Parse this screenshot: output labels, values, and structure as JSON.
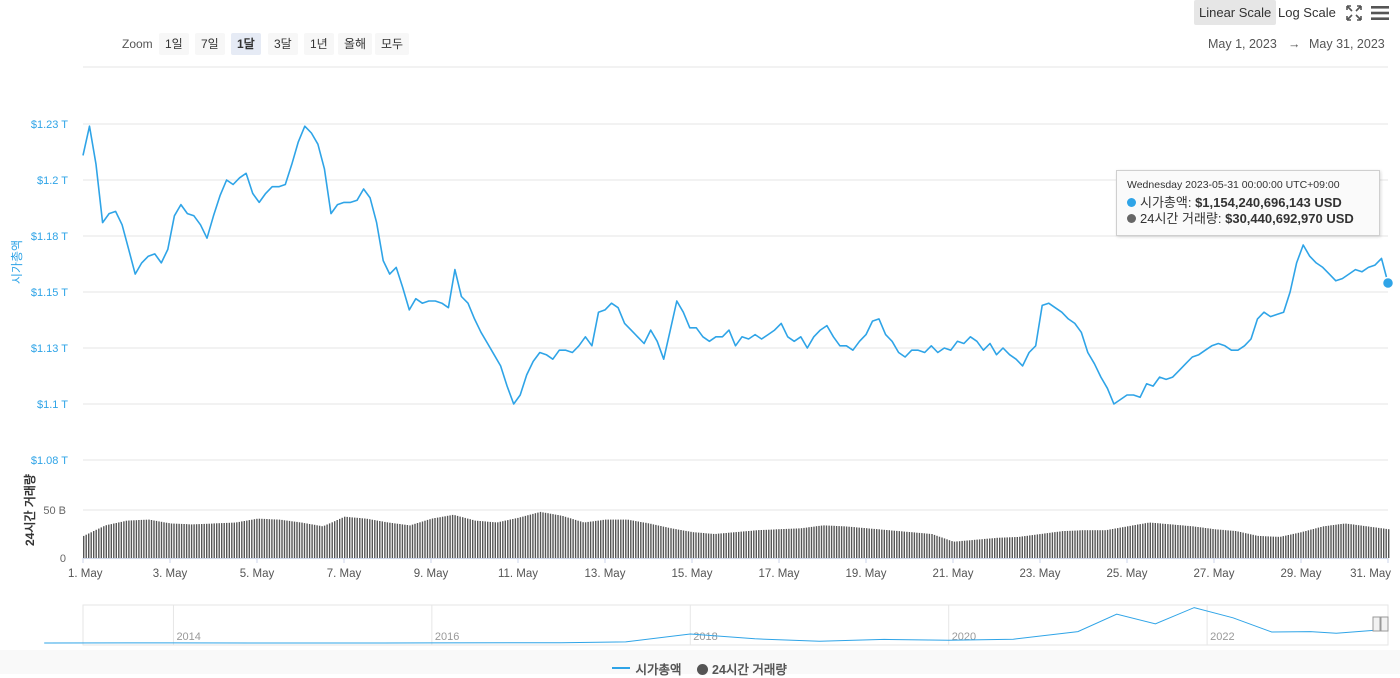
{
  "toolbar": {
    "linear_label": "Linear Scale",
    "log_label": "Log Scale",
    "fullscreen_icon": "fullscreen-icon",
    "menu_icon": "hamburger-menu-icon"
  },
  "zoom": {
    "label": "Zoom",
    "buttons": [
      "1일",
      "7일",
      "1달",
      "3달",
      "1년",
      "올해",
      "모두"
    ],
    "active_index": 2
  },
  "range": {
    "from": "May 1, 2023",
    "arrow": "→",
    "to": "May 31, 2023"
  },
  "tooltip": {
    "date": "Wednesday 2023-05-31 00:00:00 UTC+09:00",
    "mcap_label": "시가총액:",
    "mcap_value": "$1,154,240,696,143 USD",
    "vol_label": "24시간 거래량:",
    "vol_value": "$30,440,692,970 USD"
  },
  "legend": {
    "mcap": "시가총액",
    "volume": "24시간 거래량"
  },
  "colors": {
    "mcap": "#2fa4e7",
    "volume": "#666666",
    "grid": "#e6e6e6"
  },
  "chart_data": {
    "type": "line",
    "x_ticks": [
      "1. May",
      "3. May",
      "5. May",
      "7. May",
      "9. May",
      "11. May",
      "13. May",
      "15. May",
      "17. May",
      "19. May",
      "21. May",
      "23. May",
      "25. May",
      "27. May",
      "29. May",
      "31. May"
    ],
    "y_ticks": [
      "$1.08 T",
      "$1.1 T",
      "$1.13 T",
      "$1.15 T",
      "$1.18 T",
      "$1.2 T",
      "$1.23 T"
    ],
    "ylim": [
      1.075,
      1.225
    ],
    "ylabel": "시가총액",
    "vol_ylabel": "24시간 거래량",
    "vol_ticks": [
      "0",
      "50 B"
    ],
    "vol_ylim": [
      0,
      50
    ],
    "series": [
      {
        "name": "시가총액",
        "unit": "trillion USD",
        "points": [
          [
            1.0,
            1.211
          ],
          [
            1.15,
            1.224
          ],
          [
            1.3,
            1.207
          ],
          [
            1.45,
            1.181
          ],
          [
            1.6,
            1.185
          ],
          [
            1.75,
            1.186
          ],
          [
            1.9,
            1.18
          ],
          [
            2.05,
            1.169
          ],
          [
            2.2,
            1.158
          ],
          [
            2.35,
            1.163
          ],
          [
            2.5,
            1.166
          ],
          [
            2.65,
            1.167
          ],
          [
            2.8,
            1.163
          ],
          [
            2.95,
            1.169
          ],
          [
            3.1,
            1.184
          ],
          [
            3.25,
            1.189
          ],
          [
            3.4,
            1.185
          ],
          [
            3.55,
            1.184
          ],
          [
            3.7,
            1.18
          ],
          [
            3.85,
            1.174
          ],
          [
            4.0,
            1.184
          ],
          [
            4.15,
            1.193
          ],
          [
            4.3,
            1.2
          ],
          [
            4.45,
            1.198
          ],
          [
            4.6,
            1.201
          ],
          [
            4.75,
            1.203
          ],
          [
            4.9,
            1.194
          ],
          [
            5.05,
            1.19
          ],
          [
            5.2,
            1.194
          ],
          [
            5.35,
            1.197
          ],
          [
            5.5,
            1.197
          ],
          [
            5.65,
            1.198
          ],
          [
            5.8,
            1.207
          ],
          [
            5.95,
            1.217
          ],
          [
            6.1,
            1.224
          ],
          [
            6.25,
            1.221
          ],
          [
            6.4,
            1.216
          ],
          [
            6.55,
            1.205
          ],
          [
            6.7,
            1.185
          ],
          [
            6.85,
            1.189
          ],
          [
            7.0,
            1.19
          ],
          [
            7.15,
            1.19
          ],
          [
            7.3,
            1.191
          ],
          [
            7.45,
            1.196
          ],
          [
            7.6,
            1.192
          ],
          [
            7.75,
            1.181
          ],
          [
            7.9,
            1.164
          ],
          [
            8.05,
            1.158
          ],
          [
            8.2,
            1.161
          ],
          [
            8.35,
            1.152
          ],
          [
            8.5,
            1.142
          ],
          [
            8.65,
            1.147
          ],
          [
            8.8,
            1.145
          ],
          [
            8.95,
            1.146
          ],
          [
            9.1,
            1.146
          ],
          [
            9.25,
            1.145
          ],
          [
            9.4,
            1.143
          ],
          [
            9.55,
            1.16
          ],
          [
            9.7,
            1.148
          ],
          [
            9.85,
            1.145
          ],
          [
            10.0,
            1.138
          ],
          [
            10.15,
            1.132
          ],
          [
            10.3,
            1.127
          ],
          [
            10.45,
            1.122
          ],
          [
            10.6,
            1.117
          ],
          [
            10.75,
            1.108
          ],
          [
            10.9,
            1.1
          ],
          [
            11.05,
            1.104
          ],
          [
            11.2,
            1.113
          ],
          [
            11.35,
            1.119
          ],
          [
            11.5,
            1.123
          ],
          [
            11.65,
            1.122
          ],
          [
            11.8,
            1.12
          ],
          [
            11.95,
            1.124
          ],
          [
            12.1,
            1.124
          ],
          [
            12.25,
            1.123
          ],
          [
            12.4,
            1.126
          ],
          [
            12.55,
            1.13
          ],
          [
            12.7,
            1.126
          ],
          [
            12.85,
            1.141
          ],
          [
            13.0,
            1.142
          ],
          [
            13.15,
            1.145
          ],
          [
            13.3,
            1.143
          ],
          [
            13.45,
            1.136
          ],
          [
            13.6,
            1.133
          ],
          [
            13.75,
            1.13
          ],
          [
            13.9,
            1.127
          ],
          [
            14.05,
            1.133
          ],
          [
            14.2,
            1.128
          ],
          [
            14.35,
            1.12
          ],
          [
            14.5,
            1.133
          ],
          [
            14.65,
            1.146
          ],
          [
            14.8,
            1.141
          ],
          [
            14.95,
            1.134
          ],
          [
            15.1,
            1.134
          ],
          [
            15.25,
            1.13
          ],
          [
            15.4,
            1.128
          ],
          [
            15.55,
            1.13
          ],
          [
            15.7,
            1.13
          ],
          [
            15.85,
            1.133
          ],
          [
            16.0,
            1.126
          ],
          [
            16.15,
            1.13
          ],
          [
            16.3,
            1.129
          ],
          [
            16.45,
            1.131
          ],
          [
            16.6,
            1.129
          ],
          [
            16.75,
            1.131
          ],
          [
            16.9,
            1.133
          ],
          [
            17.05,
            1.136
          ],
          [
            17.2,
            1.13
          ],
          [
            17.35,
            1.128
          ],
          [
            17.5,
            1.13
          ],
          [
            17.65,
            1.125
          ],
          [
            17.8,
            1.13
          ],
          [
            17.95,
            1.133
          ],
          [
            18.1,
            1.135
          ],
          [
            18.25,
            1.13
          ],
          [
            18.4,
            1.126
          ],
          [
            18.55,
            1.126
          ],
          [
            18.7,
            1.124
          ],
          [
            18.85,
            1.128
          ],
          [
            19.0,
            1.131
          ],
          [
            19.15,
            1.137
          ],
          [
            19.3,
            1.138
          ],
          [
            19.45,
            1.131
          ],
          [
            19.6,
            1.128
          ],
          [
            19.75,
            1.123
          ],
          [
            19.9,
            1.121
          ],
          [
            20.05,
            1.124
          ],
          [
            20.2,
            1.124
          ],
          [
            20.35,
            1.123
          ],
          [
            20.5,
            1.126
          ],
          [
            20.65,
            1.123
          ],
          [
            20.8,
            1.125
          ],
          [
            20.95,
            1.124
          ],
          [
            21.1,
            1.128
          ],
          [
            21.25,
            1.127
          ],
          [
            21.4,
            1.13
          ],
          [
            21.55,
            1.128
          ],
          [
            21.7,
            1.124
          ],
          [
            21.85,
            1.127
          ],
          [
            22.0,
            1.122
          ],
          [
            22.15,
            1.125
          ],
          [
            22.3,
            1.122
          ],
          [
            22.45,
            1.12
          ],
          [
            22.6,
            1.117
          ],
          [
            22.75,
            1.123
          ],
          [
            22.9,
            1.126
          ],
          [
            23.05,
            1.144
          ],
          [
            23.2,
            1.145
          ],
          [
            23.35,
            1.143
          ],
          [
            23.5,
            1.141
          ],
          [
            23.65,
            1.138
          ],
          [
            23.8,
            1.136
          ],
          [
            23.95,
            1.132
          ],
          [
            24.1,
            1.123
          ],
          [
            24.25,
            1.118
          ],
          [
            24.4,
            1.112
          ],
          [
            24.55,
            1.107
          ],
          [
            24.7,
            1.1
          ],
          [
            24.85,
            1.102
          ],
          [
            25.0,
            1.104
          ],
          [
            25.15,
            1.104
          ],
          [
            25.3,
            1.103
          ],
          [
            25.45,
            1.109
          ],
          [
            25.6,
            1.108
          ],
          [
            25.75,
            1.112
          ],
          [
            25.9,
            1.111
          ],
          [
            26.05,
            1.112
          ],
          [
            26.2,
            1.115
          ],
          [
            26.35,
            1.118
          ],
          [
            26.5,
            1.121
          ],
          [
            26.65,
            1.122
          ],
          [
            26.8,
            1.124
          ],
          [
            26.95,
            1.126
          ],
          [
            27.1,
            1.127
          ],
          [
            27.25,
            1.126
          ],
          [
            27.4,
            1.124
          ],
          [
            27.55,
            1.124
          ],
          [
            27.7,
            1.126
          ],
          [
            27.85,
            1.129
          ],
          [
            28.0,
            1.138
          ],
          [
            28.15,
            1.141
          ],
          [
            28.3,
            1.139
          ],
          [
            28.45,
            1.14
          ],
          [
            28.6,
            1.141
          ],
          [
            28.75,
            1.15
          ],
          [
            28.9,
            1.163
          ],
          [
            29.05,
            1.171
          ],
          [
            29.2,
            1.166
          ],
          [
            29.35,
            1.163
          ],
          [
            29.5,
            1.161
          ],
          [
            29.65,
            1.158
          ],
          [
            29.8,
            1.155
          ],
          [
            29.95,
            1.156
          ],
          [
            30.1,
            1.158
          ],
          [
            30.25,
            1.16
          ],
          [
            30.4,
            1.159
          ],
          [
            30.55,
            1.161
          ],
          [
            30.7,
            1.162
          ],
          [
            30.85,
            1.165
          ],
          [
            31.0,
            1.154
          ]
        ]
      },
      {
        "name": "24시간 거래량",
        "unit": "billion USD",
        "points": [
          [
            1.0,
            23
          ],
          [
            1.5,
            34
          ],
          [
            2.0,
            39
          ],
          [
            2.5,
            40
          ],
          [
            3.0,
            36
          ],
          [
            3.5,
            35
          ],
          [
            4.0,
            36
          ],
          [
            4.5,
            37
          ],
          [
            5.0,
            41
          ],
          [
            5.5,
            40
          ],
          [
            6.0,
            37
          ],
          [
            6.5,
            33
          ],
          [
            7.0,
            43
          ],
          [
            7.5,
            41
          ],
          [
            8.0,
            37
          ],
          [
            8.5,
            34
          ],
          [
            9.0,
            41
          ],
          [
            9.5,
            45
          ],
          [
            10.0,
            39
          ],
          [
            10.5,
            37
          ],
          [
            11.0,
            42
          ],
          [
            11.5,
            48
          ],
          [
            12.0,
            44
          ],
          [
            12.5,
            37
          ],
          [
            13.0,
            40
          ],
          [
            13.5,
            40
          ],
          [
            14.0,
            36
          ],
          [
            14.5,
            31
          ],
          [
            15.0,
            27
          ],
          [
            15.5,
            25
          ],
          [
            16.0,
            27
          ],
          [
            16.5,
            29
          ],
          [
            17.0,
            30
          ],
          [
            17.5,
            31
          ],
          [
            18.0,
            34
          ],
          [
            18.5,
            33
          ],
          [
            19.0,
            31
          ],
          [
            19.5,
            29
          ],
          [
            20.0,
            27
          ],
          [
            20.5,
            25
          ],
          [
            21.0,
            17
          ],
          [
            21.5,
            19
          ],
          [
            22.0,
            21
          ],
          [
            22.5,
            22
          ],
          [
            23.0,
            25
          ],
          [
            23.5,
            28
          ],
          [
            24.0,
            29
          ],
          [
            24.5,
            29
          ],
          [
            25.0,
            33
          ],
          [
            25.5,
            37
          ],
          [
            26.0,
            35
          ],
          [
            26.5,
            33
          ],
          [
            27.0,
            30
          ],
          [
            27.5,
            28
          ],
          [
            28.0,
            23
          ],
          [
            28.5,
            22
          ],
          [
            29.0,
            27
          ],
          [
            29.5,
            33
          ],
          [
            30.0,
            36
          ],
          [
            30.5,
            33
          ],
          [
            31.0,
            30
          ]
        ]
      }
    ]
  },
  "navigator": {
    "years": [
      "2014",
      "2016",
      "2018",
      "2020",
      "2022"
    ],
    "series": [
      [
        "2013",
        0.002
      ],
      [
        "2014",
        0.006
      ],
      [
        "2015",
        0.004
      ],
      [
        "2016",
        0.01
      ],
      [
        "2017",
        0.025
      ],
      [
        "2017.5",
        0.09
      ],
      [
        "2018",
        0.75
      ],
      [
        "2018.5",
        0.35
      ],
      [
        "2019",
        0.15
      ],
      [
        "2019.5",
        0.3
      ],
      [
        "2020",
        0.23
      ],
      [
        "2020.5",
        0.32
      ],
      [
        "2021",
        0.95
      ],
      [
        "2021.3",
        2.4
      ],
      [
        "2021.6",
        1.6
      ],
      [
        "2021.9",
        2.95
      ],
      [
        "2022.2",
        2.1
      ],
      [
        "2022.5",
        0.92
      ],
      [
        "2022.8",
        0.95
      ],
      [
        "2023",
        0.82
      ],
      [
        "2023.4",
        1.15
      ]
    ]
  }
}
